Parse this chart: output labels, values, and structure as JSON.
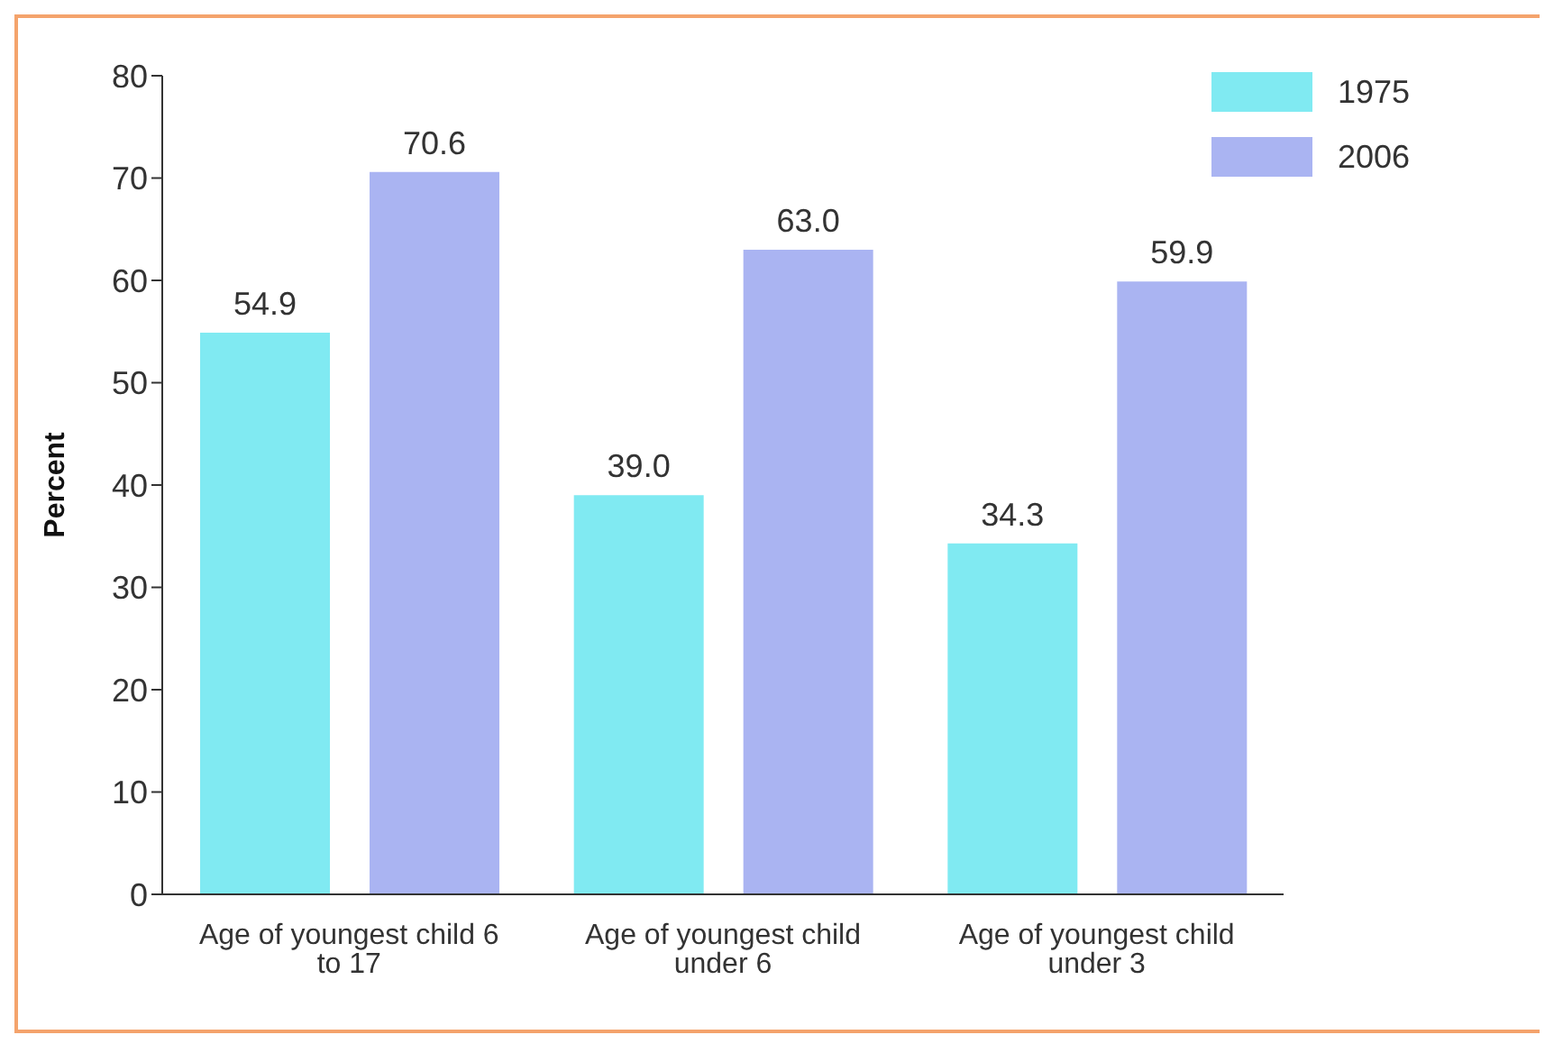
{
  "chart_data": {
    "type": "bar",
    "ylabel": "Percent",
    "categories": [
      "Age of youngest child 6 to 17",
      "Age of youngest child under 6",
      "Age of youngest child under 3"
    ],
    "series": [
      {
        "name": "1975",
        "color": "#80eaf2",
        "values": [
          54.9,
          39.0,
          34.3
        ],
        "value_labels": [
          "54.9",
          "39.0",
          "34.3"
        ]
      },
      {
        "name": "2006",
        "color": "#aab4f2",
        "values": [
          70.6,
          63.0,
          59.9
        ],
        "value_labels": [
          "70.6",
          "63.0",
          "59.9"
        ]
      }
    ],
    "ylim": [
      0,
      80
    ],
    "yticks": [
      0,
      10,
      20,
      30,
      40,
      50,
      60,
      70,
      80
    ],
    "grid": false,
    "legend": "top right"
  }
}
